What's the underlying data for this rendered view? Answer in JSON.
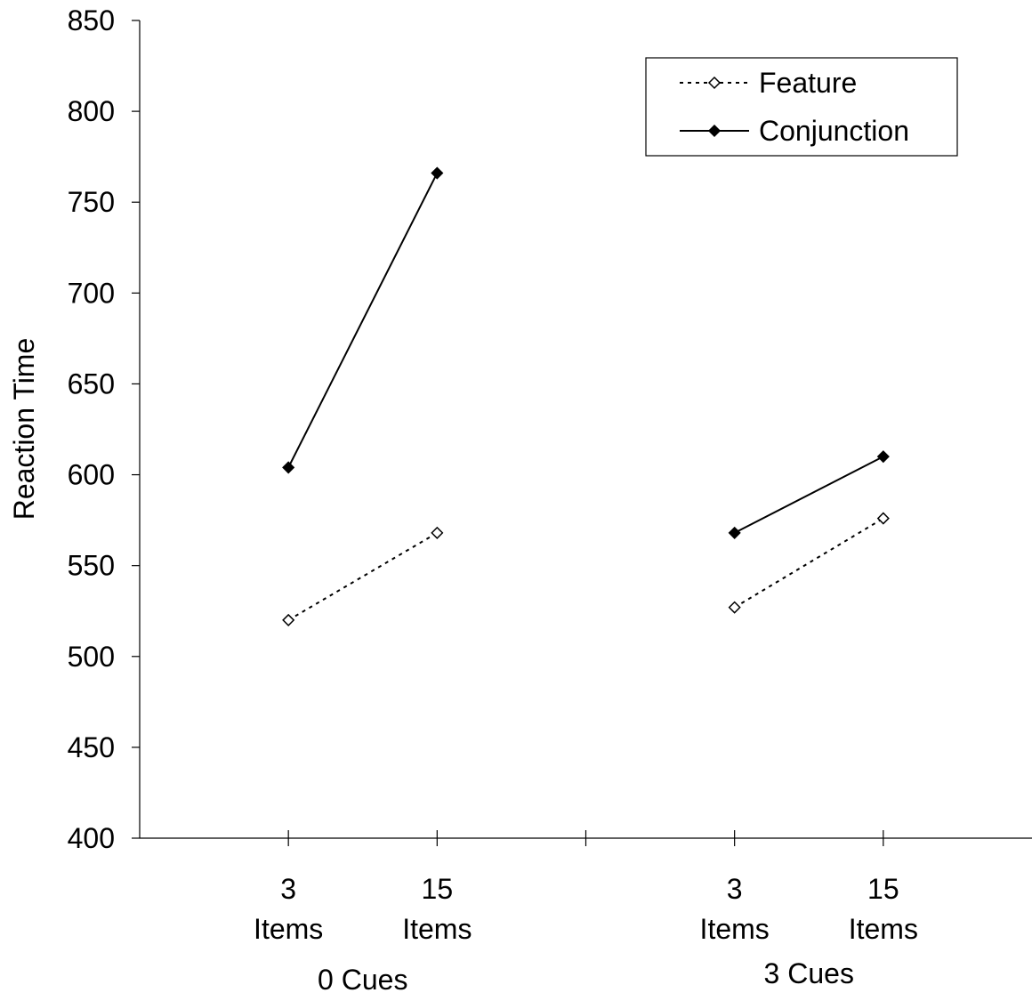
{
  "chart_data": {
    "type": "line",
    "title": "",
    "xlabel": "",
    "ylabel": "Reaction Time",
    "ylim": [
      400,
      850
    ],
    "yticks": [
      400,
      450,
      500,
      550,
      600,
      650,
      700,
      750,
      800,
      850
    ],
    "grid": false,
    "legend_position": "top-right",
    "groups": [
      {
        "label": "0 Cues",
        "categories": [
          {
            "number": "3",
            "unit": "Items"
          },
          {
            "number": "15",
            "unit": "Items"
          }
        ]
      },
      {
        "label": "3 Cues",
        "categories": [
          {
            "number": "3",
            "unit": "Items"
          },
          {
            "number": "15",
            "unit": "Items"
          }
        ]
      }
    ],
    "series": [
      {
        "name": "Feature",
        "style": "dotted",
        "marker": "open-diamond",
        "color": "#000000",
        "values": [
          [
            520,
            568
          ],
          [
            527,
            576
          ]
        ]
      },
      {
        "name": "Conjunction",
        "style": "solid",
        "marker": "filled-diamond",
        "color": "#000000",
        "values": [
          [
            604,
            766
          ],
          [
            568,
            610
          ]
        ]
      }
    ]
  }
}
